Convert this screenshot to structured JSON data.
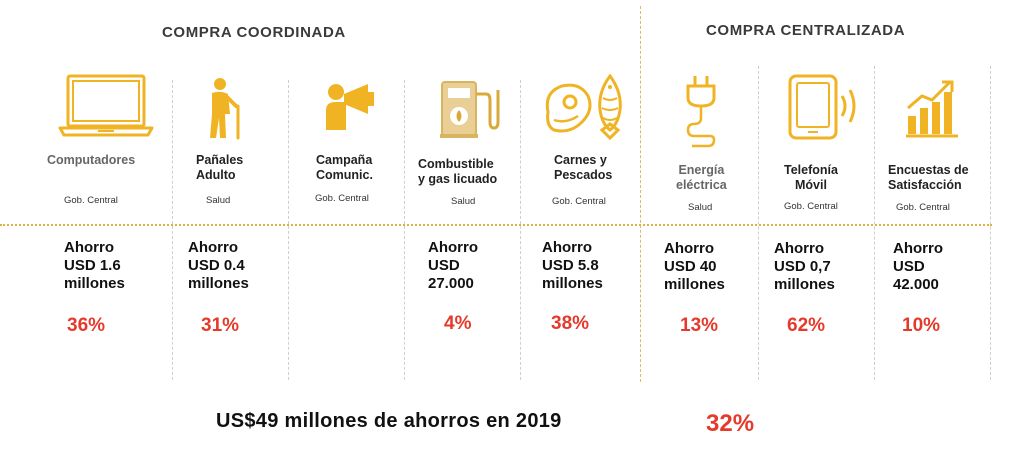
{
  "headings": {
    "coordinada": "COMPRA COORDINADA",
    "centralizada": "COMPRA CENTRALIZADA"
  },
  "accent_color": "#f0b323",
  "percent_color": "#e53a2b",
  "items": [
    {
      "icon": "laptop-icon",
      "name": "Computadores",
      "unit": "Gob. Central",
      "saving": "Ahorro\nUSD 1.6\nmillones",
      "percent": "36%"
    },
    {
      "icon": "elderly-person-icon",
      "name": "Pañales\nAdulto",
      "unit": "Salud",
      "saving": "Ahorro\nUSD 0.4\nmillones",
      "percent": "31%"
    },
    {
      "icon": "megaphone-person-icon",
      "name": "Campaña\nComunic.",
      "unit": "Gob. Central",
      "saving": "",
      "percent": ""
    },
    {
      "icon": "fuel-pump-icon",
      "name": "Combustible\ny gas licuado",
      "unit": "Salud",
      "saving": "Ahorro\nUSD\n27.000",
      "percent": "4%"
    },
    {
      "icon": "meat-fish-icon",
      "name": "Carnes y\nPescados",
      "unit": "Gob. Central",
      "saving": "Ahorro\nUSD 5.8\nmillones",
      "percent": "38%"
    },
    {
      "icon": "power-plug-icon",
      "name": "Energía\neléctrica",
      "unit": "Salud",
      "saving": "Ahorro\nUSD 40\nmillones",
      "percent": "13%"
    },
    {
      "icon": "mobile-phone-icon",
      "name": "Telefonía\nMóvil",
      "unit": "Gob. Central",
      "saving": "Ahorro\nUSD 0,7\nmillones",
      "percent": "62%"
    },
    {
      "icon": "bar-chart-icon",
      "name": "Encuestas de\nSatisfacción",
      "unit": "Gob. Central",
      "saving": "Ahorro\nUSD\n42.000",
      "percent": "10%"
    }
  ],
  "summary": {
    "text": "US$49 millones de ahorros en 2019",
    "percent": "32%"
  }
}
